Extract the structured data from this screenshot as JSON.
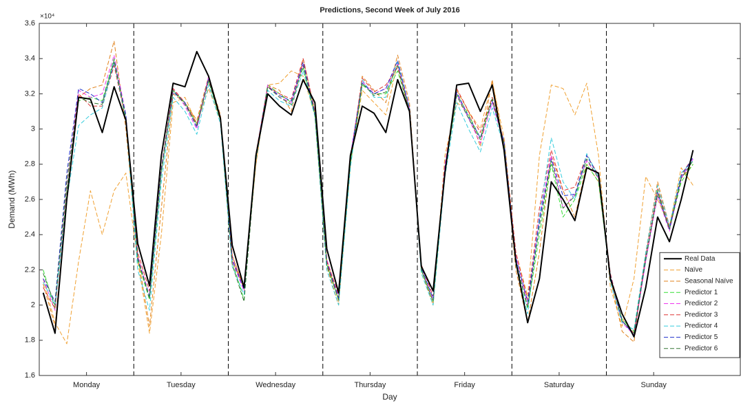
{
  "chart_data": {
    "type": "line",
    "title": "Predictions, Second Week of July 2016",
    "x_label": "Day",
    "y_label": "Demand (MWh)",
    "y_multiplier": "×10⁴",
    "x": [
      1,
      4,
      7,
      10,
      13,
      16,
      19,
      22,
      25,
      28,
      31,
      34,
      37,
      40,
      43,
      46,
      49,
      52,
      55,
      58,
      61,
      64,
      67,
      70,
      73,
      76,
      79,
      82,
      85,
      88,
      91,
      94,
      97,
      100,
      103,
      106,
      109,
      112,
      115,
      118,
      121,
      124,
      127,
      130,
      133,
      136,
      139,
      142,
      145,
      148,
      151,
      154,
      157,
      160,
      163,
      166
    ],
    "xlim": [
      0,
      178
    ],
    "xticks": [
      {
        "value": 12,
        "label": "Monday"
      },
      {
        "value": 36,
        "label": "Tuesday"
      },
      {
        "value": 60,
        "label": "Wednesday"
      },
      {
        "value": 84,
        "label": "Thursday"
      },
      {
        "value": 108,
        "label": "Friday"
      },
      {
        "value": 132,
        "label": "Saturday"
      },
      {
        "value": 156,
        "label": "Sunday"
      }
    ],
    "vlines": [
      24,
      48,
      72,
      96,
      120,
      144
    ],
    "ylim": [
      16000,
      36000
    ],
    "yticks": [
      {
        "value": 16000,
        "label": "1.6"
      },
      {
        "value": 18000,
        "label": "1.8"
      },
      {
        "value": 20000,
        "label": "2"
      },
      {
        "value": 22000,
        "label": "2.2"
      },
      {
        "value": 24000,
        "label": "2.4"
      },
      {
        "value": 26000,
        "label": "2.6"
      },
      {
        "value": 28000,
        "label": "2.8"
      },
      {
        "value": 30000,
        "label": "3"
      },
      {
        "value": 32000,
        "label": "3.2"
      },
      {
        "value": 34000,
        "label": "3.4"
      },
      {
        "value": 36000,
        "label": "3.6"
      }
    ],
    "grid": false,
    "legend": "lower right",
    "series": [
      {
        "name": "Real Data",
        "color": "#000000",
        "dashed": false,
        "values": [
          20700,
          18400,
          26000,
          31800,
          31700,
          29800,
          32400,
          30500,
          23500,
          21100,
          28500,
          32600,
          32400,
          34400,
          33000,
          30600,
          23400,
          21000,
          28500,
          32000,
          31300,
          30800,
          32800,
          31500,
          23200,
          20700,
          28500,
          31300,
          30900,
          29800,
          32800,
          31000,
          22200,
          20800,
          27500,
          32500,
          32600,
          31000,
          32500,
          28800,
          22500,
          19000,
          21500,
          27000,
          26000,
          24800,
          27800,
          27500,
          21500,
          19500,
          18200,
          21000,
          25000,
          23600,
          26000,
          28800
        ]
      },
      {
        "name": "Naïve",
        "color": "#f0a030",
        "dashed": true,
        "values": [
          21500,
          19000,
          17800,
          22500,
          26500,
          24000,
          26500,
          27500,
          22500,
          18400,
          24000,
          31500,
          31800,
          30300,
          32300,
          30500,
          22500,
          21000,
          28000,
          32500,
          32600,
          33300,
          33000,
          30800,
          22600,
          20200,
          28000,
          32200,
          31500,
          30800,
          33800,
          31000,
          22000,
          20000,
          28500,
          31500,
          31000,
          30000,
          32700,
          29500,
          23000,
          20500,
          28500,
          32500,
          32300,
          30800,
          32600,
          28500,
          21000,
          18800,
          21500,
          27300,
          26000,
          24500,
          27800,
          26800
        ]
      },
      {
        "name": "Seasonal Naïve",
        "color": "#e0801a",
        "dashed": true,
        "values": [
          21200,
          18800,
          26000,
          31800,
          32300,
          32500,
          35000,
          30000,
          22800,
          18800,
          25500,
          32000,
          31500,
          30500,
          33000,
          30800,
          22800,
          21000,
          28000,
          32500,
          32200,
          31000,
          34000,
          31000,
          22200,
          20000,
          28000,
          33000,
          32200,
          31500,
          34200,
          31500,
          22000,
          20000,
          28000,
          32200,
          31000,
          29000,
          32800,
          29000,
          22000,
          19000,
          23000,
          28500,
          26500,
          25000,
          28000,
          27000,
          21500,
          18500,
          17900,
          23000,
          27000,
          24500,
          27200,
          28000
        ]
      },
      {
        "name": "Predictor 1",
        "color": "#33dd33",
        "dashed": true,
        "values": [
          22000,
          19800,
          26500,
          31600,
          31800,
          31600,
          34000,
          30700,
          22500,
          20300,
          27500,
          32200,
          31500,
          30300,
          32800,
          30500,
          22500,
          20300,
          28500,
          32500,
          32000,
          31500,
          33500,
          30800,
          22300,
          20300,
          28000,
          32500,
          32000,
          32000,
          33300,
          31000,
          22000,
          20200,
          27500,
          32000,
          30800,
          29500,
          31800,
          29000,
          22500,
          19800,
          24000,
          28000,
          25000,
          26000,
          28000,
          27000,
          21500,
          19200,
          18500,
          22500,
          26500,
          24300,
          27000,
          28000
        ]
      },
      {
        "name": "Predictor 2",
        "color": "#ee33ee",
        "dashed": true,
        "values": [
          21500,
          19700,
          26800,
          32200,
          31800,
          32000,
          34200,
          30800,
          22800,
          20500,
          27700,
          32300,
          31300,
          30000,
          33000,
          30600,
          22500,
          20800,
          28500,
          32500,
          31800,
          31500,
          33700,
          30800,
          22600,
          20500,
          28500,
          32700,
          32000,
          32300,
          33700,
          31200,
          22200,
          20300,
          28000,
          32000,
          30600,
          29200,
          31500,
          29200,
          22800,
          20000,
          25000,
          28500,
          25500,
          26300,
          28200,
          27200,
          21600,
          19000,
          18300,
          22500,
          26200,
          24200,
          27200,
          28300
        ]
      },
      {
        "name": "Predictor 3",
        "color": "#dd3333",
        "dashed": true,
        "values": [
          21000,
          19800,
          27000,
          32000,
          31300,
          31300,
          33600,
          30500,
          23000,
          20800,
          27800,
          32300,
          31500,
          30300,
          32800,
          30700,
          22800,
          20900,
          28600,
          32400,
          32000,
          31700,
          34000,
          31000,
          22500,
          20600,
          28300,
          32900,
          32100,
          32500,
          33500,
          31000,
          22300,
          20500,
          27800,
          32300,
          31000,
          29800,
          31800,
          29300,
          23000,
          20300,
          25500,
          28800,
          26500,
          26700,
          28500,
          27400,
          21800,
          19100,
          18400,
          22800,
          26600,
          24400,
          27400,
          28400
        ]
      },
      {
        "name": "Predictor 4",
        "color": "#33ccdd",
        "dashed": true,
        "values": [
          21300,
          20000,
          26000,
          30200,
          30800,
          31200,
          33800,
          30500,
          22000,
          19700,
          27000,
          31800,
          31000,
          29700,
          32500,
          30300,
          22200,
          20600,
          28200,
          32200,
          31600,
          31300,
          33300,
          30700,
          22000,
          20000,
          27800,
          32800,
          31800,
          31800,
          33800,
          31200,
          21800,
          20000,
          27300,
          31500,
          30000,
          28700,
          31200,
          29000,
          22300,
          19500,
          25000,
          29500,
          27000,
          26000,
          28600,
          27300,
          21300,
          19000,
          18600,
          23000,
          26800,
          24500,
          27500,
          28200
        ]
      },
      {
        "name": "Predictor 5",
        "color": "#2233cc",
        "dashed": true,
        "values": [
          21500,
          20200,
          27500,
          32300,
          32000,
          31500,
          33800,
          30800,
          22600,
          20500,
          27700,
          32100,
          31500,
          30100,
          32900,
          30600,
          22600,
          20900,
          28500,
          32400,
          31900,
          31600,
          33800,
          30900,
          22400,
          20400,
          28400,
          32600,
          32000,
          32300,
          33900,
          31200,
          22100,
          20400,
          27800,
          32100,
          30700,
          29500,
          31600,
          29300,
          22700,
          20200,
          24800,
          28300,
          26200,
          26300,
          28500,
          27300,
          21700,
          19100,
          18300,
          22600,
          26400,
          24300,
          27300,
          28400
        ]
      },
      {
        "name": "Predictor 6",
        "color": "#337733",
        "dashed": true,
        "values": [
          21800,
          20000,
          27000,
          31800,
          31500,
          31400,
          33900,
          30600,
          22700,
          20400,
          27600,
          32200,
          31400,
          30200,
          32700,
          30500,
          22300,
          20200,
          28300,
          32400,
          31800,
          31400,
          33600,
          30800,
          22300,
          20300,
          28100,
          32600,
          31900,
          32100,
          33600,
          31000,
          22000,
          20200,
          27600,
          31900,
          30600,
          29400,
          31700,
          29200,
          22500,
          19900,
          24500,
          28200,
          25500,
          26200,
          28300,
          27200,
          21600,
          19100,
          18400,
          22700,
          26300,
          24300,
          27200,
          28200
        ]
      }
    ]
  }
}
